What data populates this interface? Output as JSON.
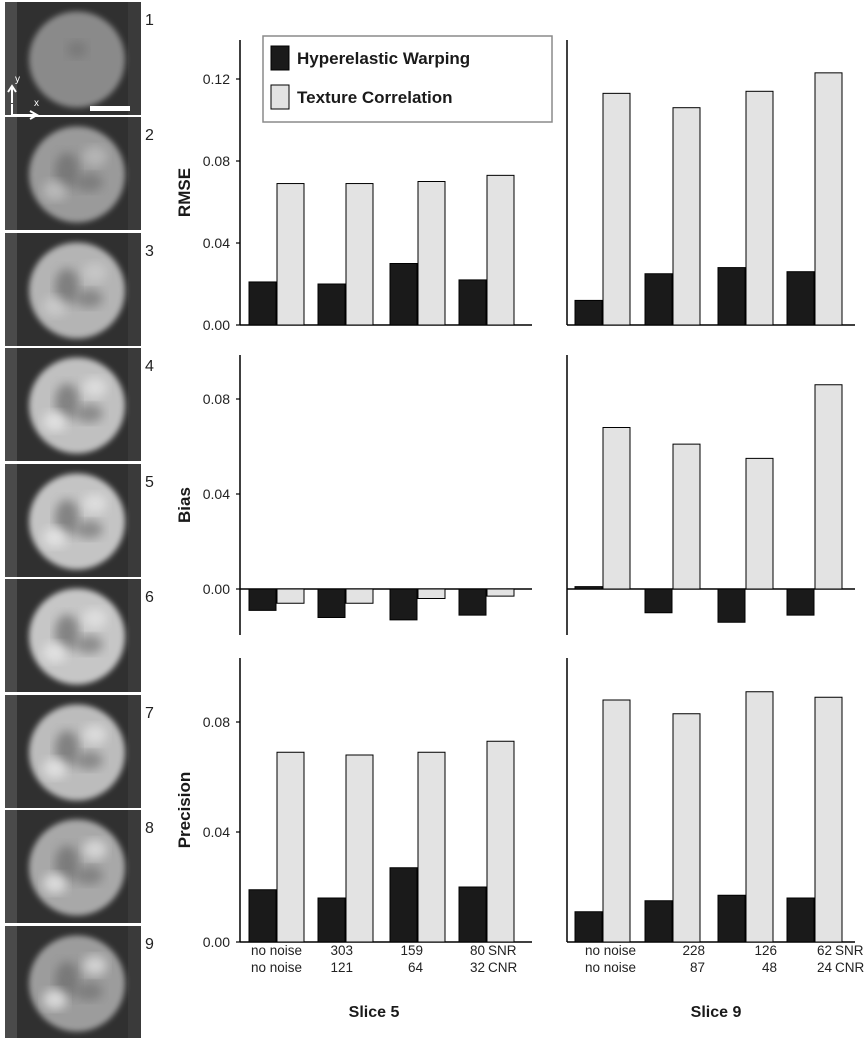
{
  "figure": {
    "slice_numbers": [
      "1",
      "2",
      "3",
      "4",
      "5",
      "6",
      "7",
      "8",
      "9"
    ],
    "axis_indicator": {
      "x": "x",
      "y": "y"
    },
    "legend": [
      {
        "label": "Hyperelastic Warping",
        "color": "#1a1a1a"
      },
      {
        "label": "Texture Correlation",
        "color": "#e3e3e3"
      }
    ],
    "colors": {
      "hyperelastic": "#1a1a1a",
      "texture": "#e3e3e3",
      "axis": "#000000",
      "image_bg": "#2e2e2e"
    }
  },
  "chart_data": [
    {
      "type": "bar",
      "panel": "slice5-rmse",
      "ylabel": "RMSE",
      "yticks": [
        "0.00",
        "0.04",
        "0.08",
        "0.12"
      ],
      "ylim": [
        0,
        0.14
      ],
      "series": [
        {
          "name": "Hyperelastic Warping",
          "values": [
            0.021,
            0.02,
            0.03,
            0.022
          ]
        },
        {
          "name": "Texture Correlation",
          "values": [
            0.069,
            0.069,
            0.07,
            0.073
          ]
        }
      ]
    },
    {
      "type": "bar",
      "panel": "slice9-rmse",
      "ylim": [
        0,
        0.14
      ],
      "series": [
        {
          "name": "Hyperelastic Warping",
          "values": [
            0.012,
            0.025,
            0.028,
            0.026
          ]
        },
        {
          "name": "Texture Correlation",
          "values": [
            0.113,
            0.106,
            0.114,
            0.123
          ]
        }
      ]
    },
    {
      "type": "bar",
      "panel": "slice5-bias",
      "ylabel": "Bias",
      "yticks": [
        "0.00",
        "0.04",
        "0.08"
      ],
      "ylim": [
        -0.02,
        0.1
      ],
      "series": [
        {
          "name": "Hyperelastic Warping",
          "values": [
            -0.009,
            -0.012,
            -0.013,
            -0.011
          ]
        },
        {
          "name": "Texture Correlation",
          "values": [
            -0.006,
            -0.006,
            -0.004,
            -0.003
          ]
        }
      ]
    },
    {
      "type": "bar",
      "panel": "slice9-bias",
      "ylim": [
        -0.02,
        0.1
      ],
      "series": [
        {
          "name": "Hyperelastic Warping",
          "values": [
            0.001,
            -0.01,
            -0.014,
            -0.011
          ]
        },
        {
          "name": "Texture Correlation",
          "values": [
            0.068,
            0.061,
            0.055,
            0.086
          ]
        }
      ]
    },
    {
      "type": "bar",
      "panel": "slice5-precision",
      "ylabel": "Precision",
      "yticks": [
        "0.00",
        "0.04",
        "0.08"
      ],
      "ylim": [
        0,
        0.1
      ],
      "categories_snr": [
        "no noise",
        "303",
        "159",
        "80"
      ],
      "categories_cnr": [
        "no noise",
        "121",
        "64",
        "32"
      ],
      "series": [
        {
          "name": "Hyperelastic Warping",
          "values": [
            0.019,
            0.016,
            0.027,
            0.02
          ]
        },
        {
          "name": "Texture Correlation",
          "values": [
            0.069,
            0.068,
            0.069,
            0.073
          ]
        }
      ],
      "xlabel": "Slice 5"
    },
    {
      "type": "bar",
      "panel": "slice9-precision",
      "ylim": [
        0,
        0.1
      ],
      "categories_snr": [
        "no noise",
        "228",
        "126",
        "62"
      ],
      "categories_cnr": [
        "no noise",
        "87",
        "48",
        "24"
      ],
      "series": [
        {
          "name": "Hyperelastic Warping",
          "values": [
            0.011,
            0.015,
            0.017,
            0.016
          ]
        },
        {
          "name": "Texture Correlation",
          "values": [
            0.088,
            0.083,
            0.091,
            0.089
          ]
        }
      ],
      "xlabel": "Slice 9"
    }
  ],
  "row_labels": {
    "snr": "SNR",
    "cnr": "CNR"
  }
}
